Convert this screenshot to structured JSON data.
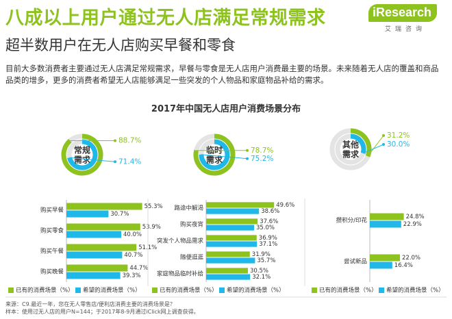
{
  "headline": "八成以上用户通过无人店满足常规需求",
  "subhead": "超半数用户在无人店购买早餐和零食",
  "brand": {
    "name": "iResearch",
    "cn": "艾瑞咨询",
    "color": "#8dc21f"
  },
  "intro": "目前大多数消费者主要通过无人店满足常规需求，早餐与零食是无人店用户消费最主要的场景。未来随着无人店的覆盖和商品品类的增多，更多的消费者希望无人店能够满足一些突发的个人物品和家庭物品补给的需求。",
  "footnote": {
    "source": "来源：C9.最近一年，您在无人零售店/便利店消费主要的消费场景是？",
    "sample": "样本：使用过无人店的用户N=144；于2017年8-9月通过iClick网上调查获得。"
  },
  "colors": {
    "existing": "#8dc21f",
    "expected": "#1fb8e8"
  },
  "chart_data": {
    "type": "bar",
    "title": "2017年中国无人店用户消费场景分布",
    "legend": {
      "existing": "已有的消费场景（%）",
      "expected": "希望的消费场景（%）",
      "placement": "bottom"
    },
    "groups": [
      {
        "donut": {
          "label_line1": "常规",
          "label_line2": "需求",
          "existing": 88.7,
          "expected": 71.4,
          "existing_label": "88.7%",
          "expected_label": "71.4%"
        },
        "categories": [
          "购买早餐",
          "购买零食",
          "购买午餐",
          "购买晚餐"
        ],
        "series": [
          {
            "name": "已有的消费场景（%）",
            "values": [
              55.3,
              53.9,
              51.1,
              44.7
            ],
            "labels": [
              "55.3%",
              "53.9%",
              "51.1%",
              "44.7%"
            ]
          },
          {
            "name": "希望的消费场景（%）",
            "values": [
              30.7,
              40.0,
              40.7,
              39.3
            ],
            "labels": [
              "30.7%",
              "40.0%",
              "40.7%",
              "39.3%"
            ]
          }
        ]
      },
      {
        "donut": {
          "label_line1": "临时",
          "label_line2": "需求",
          "existing": 78.7,
          "expected": 75.2,
          "existing_label": "78.7%",
          "expected_label": "75.2%"
        },
        "categories": [
          "路途中解渴",
          "购买夜宵",
          "突发个人物品需求",
          "随便逛逛",
          "家庭物品临时补给"
        ],
        "series": [
          {
            "name": "已有的消费场景（%）",
            "values": [
              49.6,
              37.6,
              36.9,
              31.9,
              30.5
            ],
            "labels": [
              "49.6%",
              "37.6%",
              "36.9%",
              "31.9%",
              "30.5%"
            ]
          },
          {
            "name": "希望的消费场景（%）",
            "values": [
              38.6,
              35.0,
              37.1,
              35.7,
              32.1
            ],
            "labels": [
              "38.6%",
              "35.0%",
              "37.1%",
              "35.7%",
              "32.1%"
            ]
          }
        ]
      },
      {
        "donut": {
          "label_line1": "其他",
          "label_line2": "需求",
          "existing": 31.2,
          "expected": 30.0,
          "existing_label": "31.2%",
          "expected_label": "30.0%"
        },
        "categories": [
          "攒积分/印花",
          "尝试新品"
        ],
        "series": [
          {
            "name": "已有的消费场景（%）",
            "values": [
              24.8,
              22.0
            ],
            "labels": [
              "24.8%",
              "22.0%"
            ]
          },
          {
            "name": "希望的消费场景（%）",
            "values": [
              22.9,
              16.4
            ],
            "labels": [
              "22.9%",
              "16.4%"
            ]
          }
        ]
      }
    ]
  }
}
